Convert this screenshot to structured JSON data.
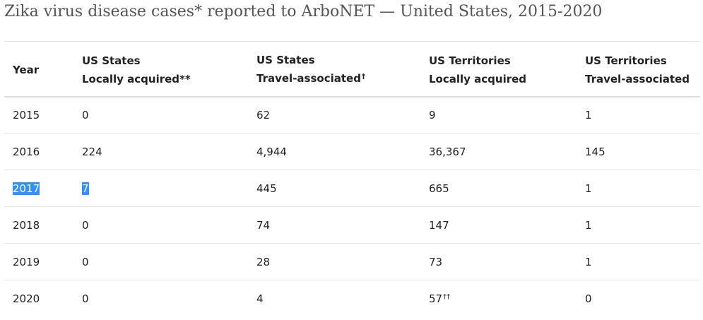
{
  "title": "Zika virus disease cases* reported to ArboNET — United States, 2015-2020",
  "table": {
    "headers": [
      {
        "line1": "",
        "line2": "Year",
        "sup": ""
      },
      {
        "line1": "US States",
        "line2": "Locally acquired**",
        "sup": ""
      },
      {
        "line1": "US States",
        "line2": "Travel-associated",
        "sup": "†"
      },
      {
        "line1": "US Territories",
        "line2": "Locally acquired",
        "sup": ""
      },
      {
        "line1": "US Territories",
        "line2": "Travel-associated",
        "sup": ""
      }
    ],
    "rows": [
      {
        "year": "2015",
        "us_local": "0",
        "us_travel": "62",
        "terr_local": "9",
        "terr_local_sup": "",
        "terr_travel": "1"
      },
      {
        "year": "2016",
        "us_local": "224",
        "us_travel": "4,944",
        "terr_local": "36,367",
        "terr_local_sup": "",
        "terr_travel": "145"
      },
      {
        "year": "2017",
        "us_local": "7",
        "us_travel": "445",
        "terr_local": "665",
        "terr_local_sup": "",
        "terr_travel": "1"
      },
      {
        "year": "2018",
        "us_local": "0",
        "us_travel": "74",
        "terr_local": "147",
        "terr_local_sup": "",
        "terr_travel": "1"
      },
      {
        "year": "2019",
        "us_local": "0",
        "us_travel": "28",
        "terr_local": "73",
        "terr_local_sup": "",
        "terr_travel": "1"
      },
      {
        "year": "2020",
        "us_local": "0",
        "us_travel": "4",
        "terr_local": "57",
        "terr_local_sup": "††",
        "terr_travel": "0"
      }
    ]
  },
  "selection": {
    "row": "2017",
    "highlight_color": "#3390ff"
  }
}
